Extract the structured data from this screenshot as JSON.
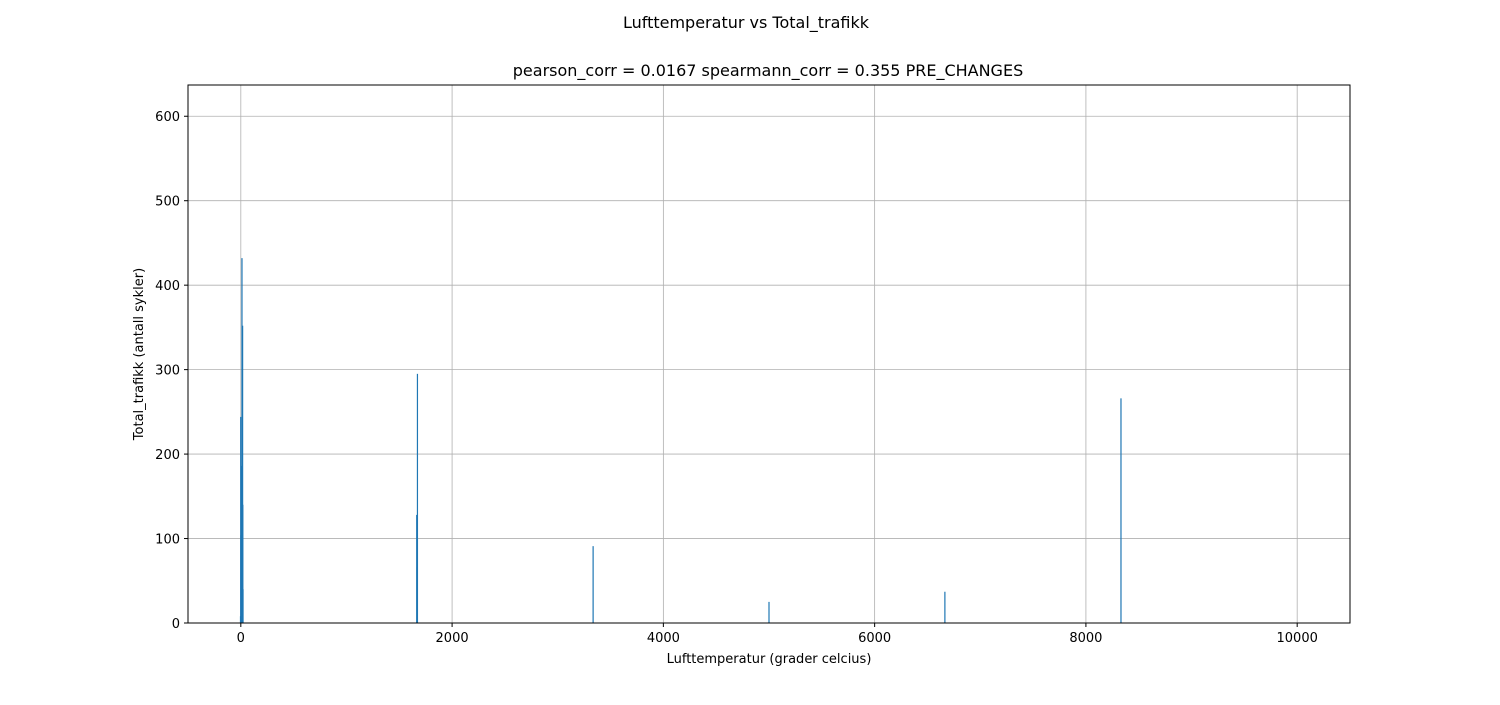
{
  "chart_data": {
    "type": "bar",
    "suptitle": "Lufttemperatur vs Total_trafikk",
    "title": "pearson_corr = 0.0167 spearmann_corr = 0.355 PRE_CHANGES",
    "xlabel": "Lufttemperatur (grader celcius)",
    "ylabel": "Total_trafikk (antall sykler)",
    "xlim": [
      -500,
      10500
    ],
    "ylim": [
      0,
      637
    ],
    "xticks": [
      0,
      2000,
      4000,
      6000,
      8000,
      10000
    ],
    "yticks": [
      0,
      100,
      200,
      300,
      400,
      500,
      600
    ],
    "grid": true,
    "bar_color": "#1f77b4",
    "points": [
      {
        "x": -3,
        "y": 8
      },
      {
        "x": -1,
        "y": 244
      },
      {
        "x": 1,
        "y": 104
      },
      {
        "x": 3,
        "y": 186
      },
      {
        "x": 5,
        "y": 60
      },
      {
        "x": 7,
        "y": 156
      },
      {
        "x": 9,
        "y": 22
      },
      {
        "x": 11,
        "y": 432
      },
      {
        "x": 13,
        "y": 205
      },
      {
        "x": 15,
        "y": 96
      },
      {
        "x": 17,
        "y": 352
      },
      {
        "x": 19,
        "y": 140
      },
      {
        "x": 21,
        "y": 40
      },
      {
        "x": 1665,
        "y": 128
      },
      {
        "x": 1668,
        "y": 66
      },
      {
        "x": 1672,
        "y": 295
      },
      {
        "x": 3335,
        "y": 91
      },
      {
        "x": 5000,
        "y": 25
      },
      {
        "x": 6665,
        "y": 37
      },
      {
        "x": 8332,
        "y": 266
      }
    ]
  }
}
